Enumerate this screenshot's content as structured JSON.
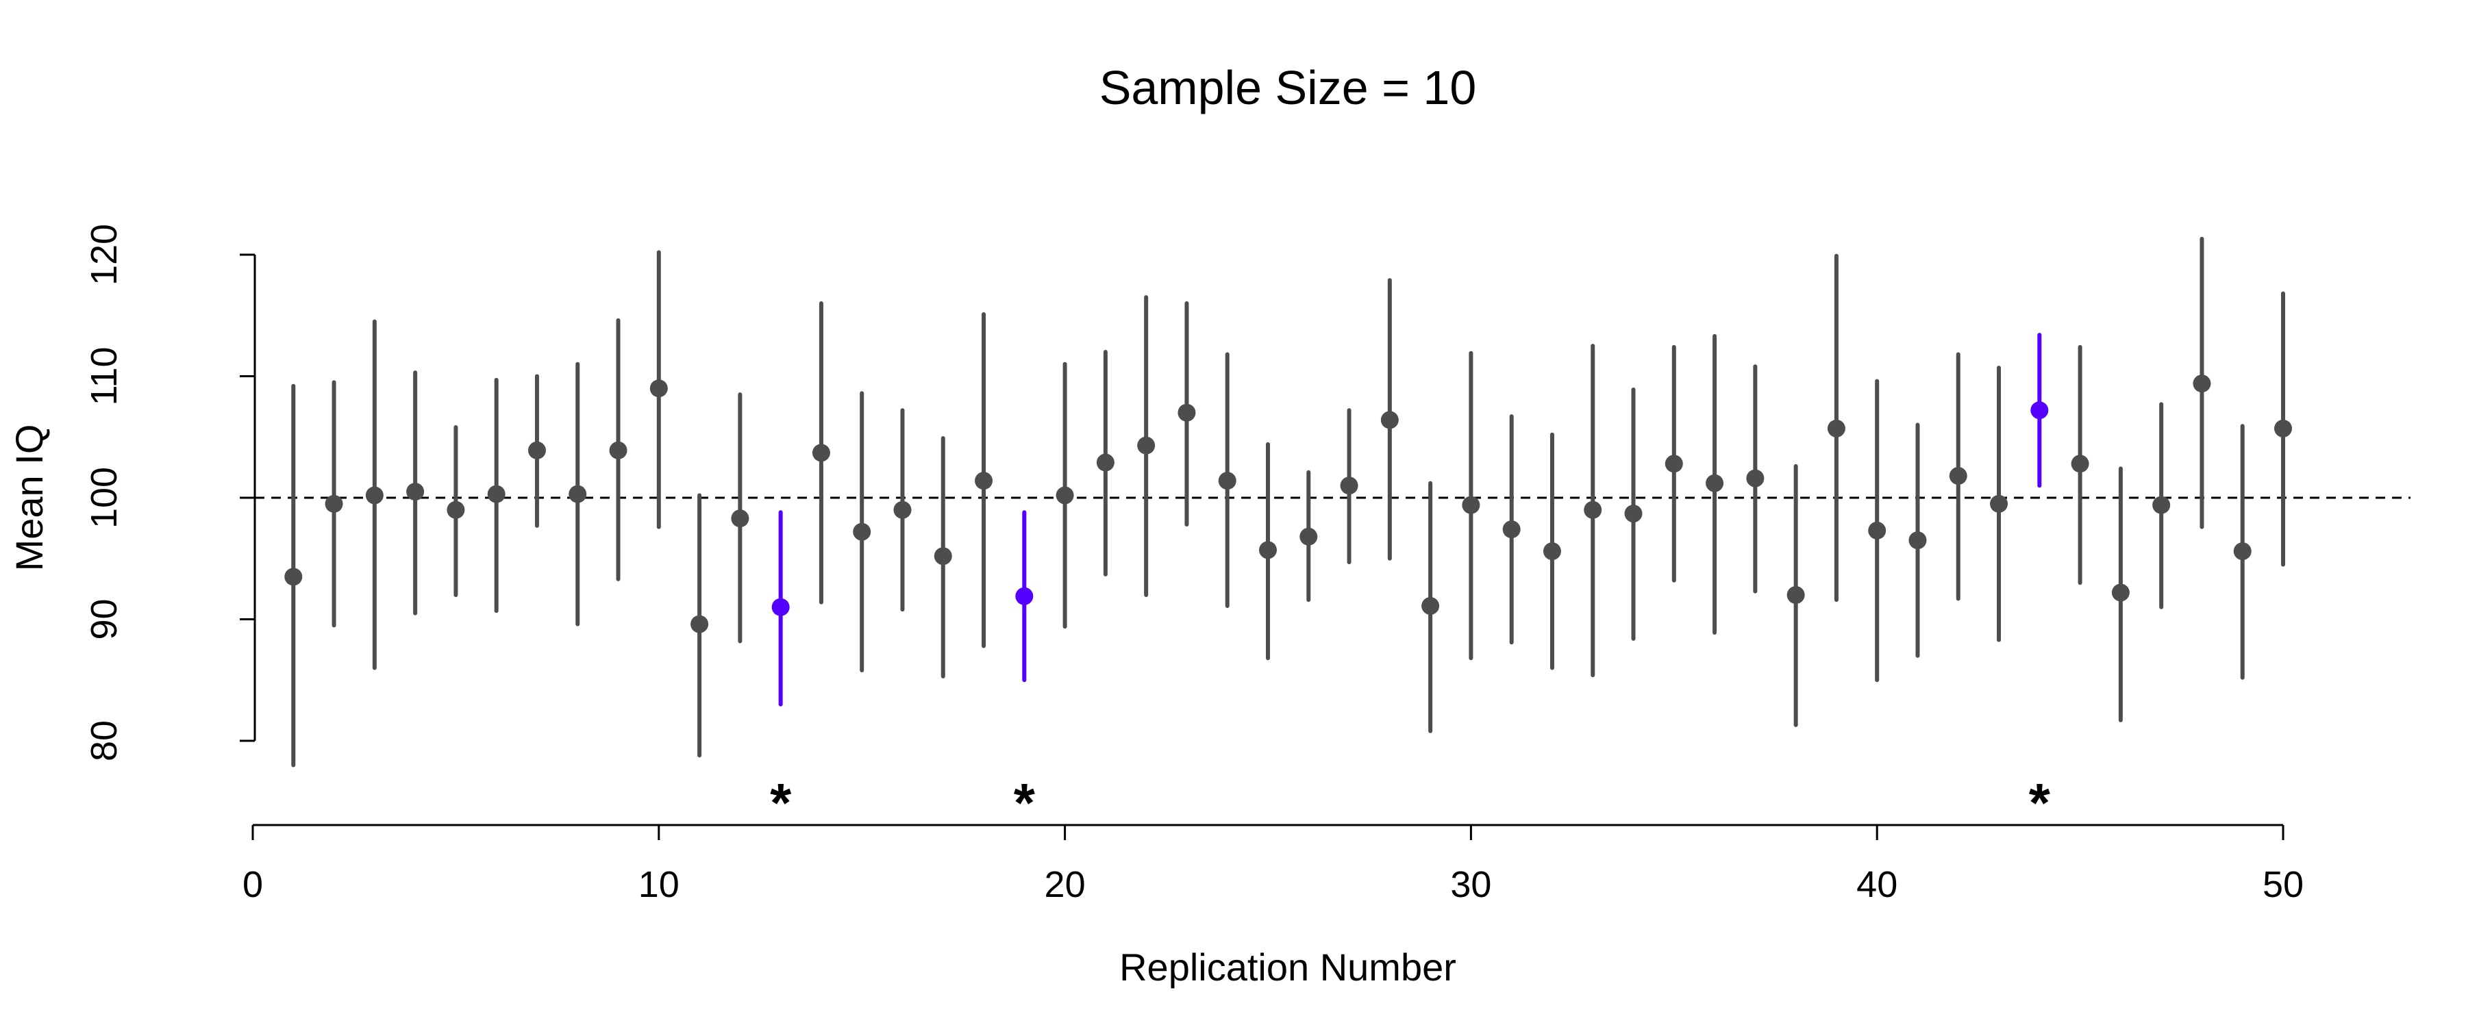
{
  "chart_data": {
    "type": "scatter",
    "title": "Sample Size = 10",
    "xlabel": "Replication Number",
    "ylabel": "Mean IQ",
    "xlim": [
      0,
      50
    ],
    "ylim": [
      80,
      120
    ],
    "x_ticks": [
      "0",
      "10",
      "20",
      "30",
      "40",
      "50"
    ],
    "y_ticks": [
      "80",
      "90",
      "100",
      "110",
      "120"
    ],
    "reference_line": 100,
    "grid": false,
    "legend": "none",
    "colors": {
      "default": "#4d4d4d",
      "highlight": "#5500ff",
      "reference": "#000000"
    },
    "marker_symbol": "*",
    "points": [
      {
        "x": 1,
        "mean": 93.5,
        "lower": 78,
        "upper": 109.2,
        "highlight": false
      },
      {
        "x": 2,
        "mean": 99.5,
        "lower": 89.5,
        "upper": 109.5,
        "highlight": false
      },
      {
        "x": 3,
        "mean": 100.2,
        "lower": 86,
        "upper": 114.5,
        "highlight": false
      },
      {
        "x": 4,
        "mean": 100.5,
        "lower": 90.5,
        "upper": 110.3,
        "highlight": false
      },
      {
        "x": 5,
        "mean": 99,
        "lower": 92,
        "upper": 105.8,
        "highlight": false
      },
      {
        "x": 6,
        "mean": 100.3,
        "lower": 90.7,
        "upper": 109.7,
        "highlight": false
      },
      {
        "x": 7,
        "mean": 103.9,
        "lower": 97.7,
        "upper": 110,
        "highlight": false
      },
      {
        "x": 8,
        "mean": 100.3,
        "lower": 89.6,
        "upper": 111,
        "highlight": false
      },
      {
        "x": 9,
        "mean": 103.9,
        "lower": 93.3,
        "upper": 114.6,
        "highlight": false
      },
      {
        "x": 10,
        "mean": 109,
        "lower": 97.6,
        "upper": 120.2,
        "highlight": false
      },
      {
        "x": 11,
        "mean": 89.6,
        "lower": 78.8,
        "upper": 100.2,
        "highlight": false
      },
      {
        "x": 12,
        "mean": 98.3,
        "lower": 88.2,
        "upper": 108.5,
        "highlight": false
      },
      {
        "x": 13,
        "mean": 91,
        "lower": 83,
        "upper": 98.8,
        "highlight": true
      },
      {
        "x": 14,
        "mean": 103.7,
        "lower": 91.4,
        "upper": 116,
        "highlight": false
      },
      {
        "x": 15,
        "mean": 97.2,
        "lower": 85.8,
        "upper": 108.6,
        "highlight": false
      },
      {
        "x": 16,
        "mean": 99,
        "lower": 90.8,
        "upper": 107.2,
        "highlight": false
      },
      {
        "x": 17,
        "mean": 95.2,
        "lower": 85.3,
        "upper": 104.9,
        "highlight": false
      },
      {
        "x": 18,
        "mean": 101.4,
        "lower": 87.8,
        "upper": 115.1,
        "highlight": false
      },
      {
        "x": 19,
        "mean": 91.9,
        "lower": 85,
        "upper": 98.8,
        "highlight": true
      },
      {
        "x": 20,
        "mean": 100.2,
        "lower": 89.4,
        "upper": 111,
        "highlight": false
      },
      {
        "x": 21,
        "mean": 102.9,
        "lower": 93.7,
        "upper": 112,
        "highlight": false
      },
      {
        "x": 22,
        "mean": 104.3,
        "lower": 92,
        "upper": 116.5,
        "highlight": false
      },
      {
        "x": 23,
        "mean": 107,
        "lower": 97.8,
        "upper": 116,
        "highlight": false
      },
      {
        "x": 24,
        "mean": 101.4,
        "lower": 91.1,
        "upper": 111.8,
        "highlight": false
      },
      {
        "x": 25,
        "mean": 95.7,
        "lower": 86.8,
        "upper": 104.4,
        "highlight": false
      },
      {
        "x": 26,
        "mean": 96.8,
        "lower": 91.6,
        "upper": 102.1,
        "highlight": false
      },
      {
        "x": 27,
        "mean": 101,
        "lower": 94.7,
        "upper": 107.2,
        "highlight": false
      },
      {
        "x": 28,
        "mean": 106.4,
        "lower": 95,
        "upper": 117.9,
        "highlight": false
      },
      {
        "x": 29,
        "mean": 91.1,
        "lower": 80.8,
        "upper": 101.2,
        "highlight": false
      },
      {
        "x": 30,
        "mean": 99.4,
        "lower": 86.8,
        "upper": 111.9,
        "highlight": false
      },
      {
        "x": 31,
        "mean": 97.4,
        "lower": 88.1,
        "upper": 106.7,
        "highlight": false
      },
      {
        "x": 32,
        "mean": 95.6,
        "lower": 86,
        "upper": 105.2,
        "highlight": false
      },
      {
        "x": 33,
        "mean": 99,
        "lower": 85.4,
        "upper": 112.5,
        "highlight": false
      },
      {
        "x": 34,
        "mean": 98.7,
        "lower": 88.4,
        "upper": 108.9,
        "highlight": false
      },
      {
        "x": 35,
        "mean": 102.8,
        "lower": 93.2,
        "upper": 112.4,
        "highlight": false
      },
      {
        "x": 36,
        "mean": 101.2,
        "lower": 88.9,
        "upper": 113.3,
        "highlight": false
      },
      {
        "x": 37,
        "mean": 101.6,
        "lower": 92.3,
        "upper": 110.8,
        "highlight": false
      },
      {
        "x": 38,
        "mean": 92,
        "lower": 81.3,
        "upper": 102.6,
        "highlight": false
      },
      {
        "x": 39,
        "mean": 105.7,
        "lower": 91.6,
        "upper": 119.9,
        "highlight": false
      },
      {
        "x": 40,
        "mean": 97.3,
        "lower": 85,
        "upper": 109.6,
        "highlight": false
      },
      {
        "x": 41,
        "mean": 96.5,
        "lower": 87,
        "upper": 106,
        "highlight": false
      },
      {
        "x": 42,
        "mean": 101.8,
        "lower": 91.7,
        "upper": 111.8,
        "highlight": false
      },
      {
        "x": 43,
        "mean": 99.5,
        "lower": 88.3,
        "upper": 110.7,
        "highlight": false
      },
      {
        "x": 44,
        "mean": 107.2,
        "lower": 101,
        "upper": 113.4,
        "highlight": true
      },
      {
        "x": 45,
        "mean": 102.8,
        "lower": 93,
        "upper": 112.4,
        "highlight": false
      },
      {
        "x": 46,
        "mean": 92.2,
        "lower": 81.7,
        "upper": 102.4,
        "highlight": false
      },
      {
        "x": 47,
        "mean": 99.4,
        "lower": 91,
        "upper": 107.7,
        "highlight": false
      },
      {
        "x": 48,
        "mean": 109.4,
        "lower": 97.6,
        "upper": 121.3,
        "highlight": false
      },
      {
        "x": 49,
        "mean": 95.6,
        "lower": 85.2,
        "upper": 105.9,
        "highlight": false
      },
      {
        "x": 50,
        "mean": 105.7,
        "lower": 94.5,
        "upper": 116.8,
        "highlight": false
      }
    ]
  }
}
